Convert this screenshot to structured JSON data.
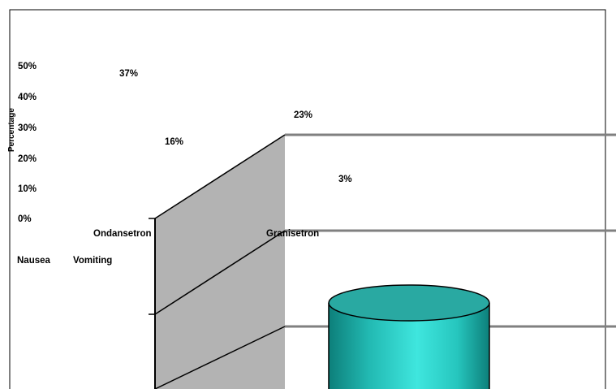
{
  "chart_data": {
    "type": "bar",
    "style": "3d-cylinder",
    "ylabel": "Percentage",
    "ylim": [
      0,
      50
    ],
    "yticks": [
      "50%",
      "40%",
      "30%",
      "20%",
      "10%",
      "0%"
    ],
    "categories": [
      "Ondansetron",
      "Granisetron"
    ],
    "series": [
      {
        "name": "Nausea",
        "values": [
          37,
          23
        ]
      },
      {
        "name": "Vomiting",
        "values": [
          16,
          3
        ]
      }
    ],
    "data_labels": [
      "37%",
      "16%",
      "23%",
      "3%"
    ],
    "legend": [
      "Nausea",
      "Vomiting"
    ],
    "legend_position": "left",
    "grid": true,
    "colors": {
      "cylinder": "#2ed8d0",
      "wall": "#b3b3b3",
      "grid": "#808080"
    }
  }
}
